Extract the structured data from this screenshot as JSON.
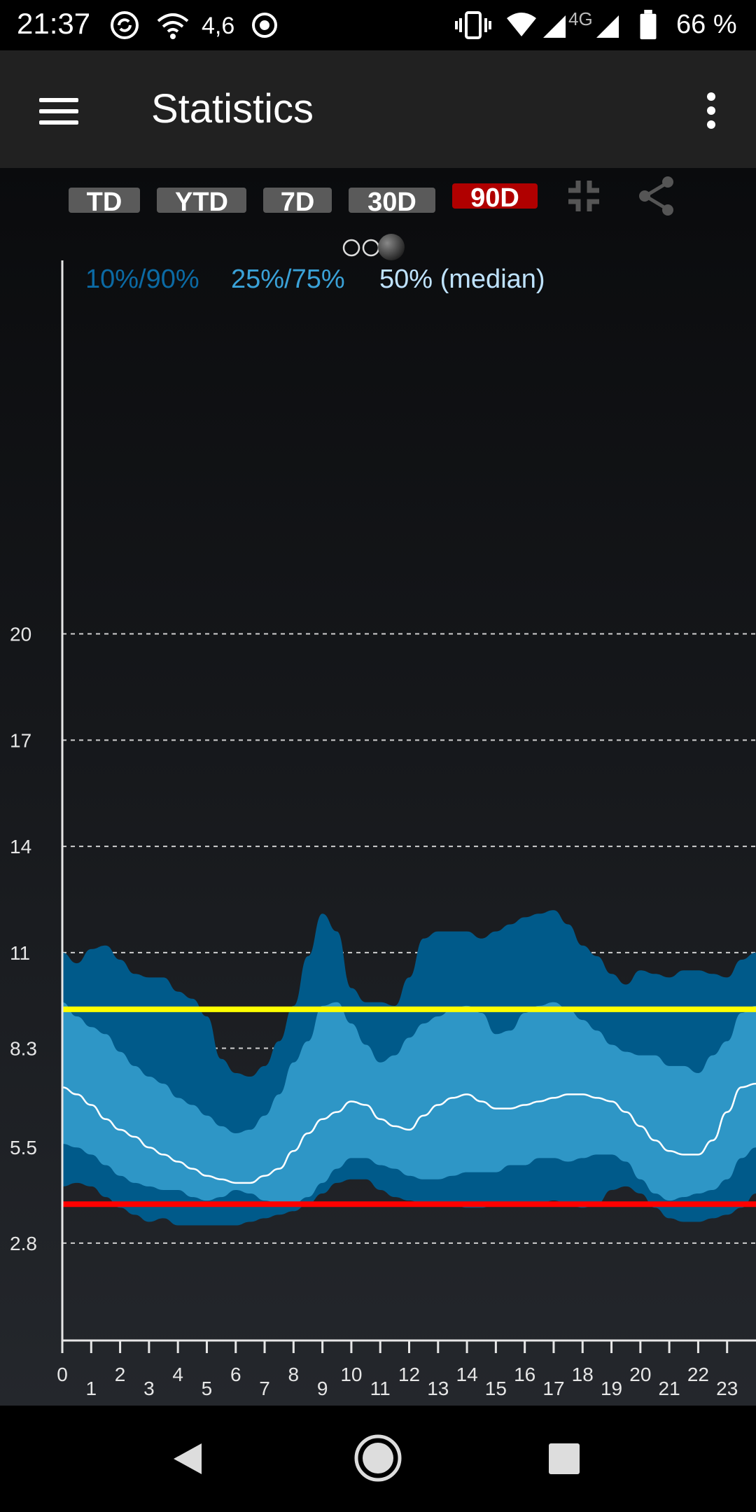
{
  "status_bar": {
    "time": "21:37",
    "speed": "4,6",
    "network": "4G",
    "battery": "66 %",
    "icons": [
      "sync-icon",
      "wifi-icon",
      "data-speed",
      "target-icon",
      "vibrate-icon",
      "wifi-icon",
      "signal-icon",
      "signal-icon",
      "battery-icon"
    ]
  },
  "app_bar": {
    "title": "Statistics",
    "menu_icon": "hamburger-menu-icon",
    "more_icon": "more-vertical-icon"
  },
  "range_buttons": [
    {
      "label": "TD",
      "active": false
    },
    {
      "label": "YTD",
      "active": false
    },
    {
      "label": "7D",
      "active": false
    },
    {
      "label": "30D",
      "active": false
    },
    {
      "label": "90D",
      "active": true
    }
  ],
  "toolbar_icons": {
    "collapse": "collapse-icon",
    "share": "share-icon"
  },
  "pager": {
    "pages": 3,
    "current": 3
  },
  "colors": {
    "band_10_90": "#005a8a",
    "band_25_75": "#2e96c6",
    "median": "#ffffff",
    "upper_limit": "#ffff00",
    "lower_limit": "#ff0000",
    "active_button": "#b00000",
    "legend_10_90": "#0b6aa4",
    "legend_25_75": "#3aa2d8",
    "legend_median": "#bfe3ff"
  },
  "chart_data": {
    "type": "area",
    "legend": [
      "10%/90%",
      "25%/75%",
      "50% (median)"
    ],
    "y_ticks": [
      "20",
      "17",
      "14",
      "11",
      "8.3",
      "5.5",
      "2.8"
    ],
    "y_tick_values": [
      20,
      17,
      14,
      11,
      8.3,
      5.5,
      2.8
    ],
    "ylim": [
      0.05,
      22.2
    ],
    "xlim": [
      0,
      24
    ],
    "x_ticks": [
      "0",
      "1",
      "2",
      "3",
      "4",
      "5",
      "6",
      "7",
      "8",
      "9",
      "10",
      "11",
      "12",
      "13",
      "14",
      "15",
      "16",
      "17",
      "18",
      "19",
      "20",
      "21",
      "22",
      "23"
    ],
    "upper_limit": 9.4,
    "lower_limit": 3.9,
    "x": [
      0,
      0.5,
      1,
      1.5,
      2,
      2.5,
      3,
      3.5,
      4,
      4.5,
      5,
      5.5,
      6,
      6.5,
      7,
      7.5,
      8,
      8.5,
      9,
      9.5,
      10,
      10.5,
      11,
      11.5,
      12,
      12.5,
      13,
      13.5,
      14,
      14.5,
      15,
      15.5,
      16,
      16.5,
      17,
      17.5,
      18,
      18.5,
      19,
      19.5,
      20,
      20.5,
      21,
      21.5,
      22,
      22.5,
      23,
      23.5,
      24
    ],
    "series": [
      {
        "name": "90%",
        "values": [
          11.0,
          10.7,
          11.1,
          11.2,
          10.8,
          10.4,
          10.3,
          10.3,
          9.9,
          9.7,
          9.2,
          8.0,
          7.6,
          7.5,
          7.8,
          8.5,
          9.5,
          10.9,
          12.1,
          11.6,
          10.0,
          9.6,
          9.6,
          9.5,
          10.3,
          11.4,
          11.6,
          11.6,
          11.6,
          11.4,
          11.6,
          11.8,
          12.0,
          12.1,
          12.2,
          11.8,
          11.2,
          10.9,
          10.4,
          10.1,
          10.5,
          10.4,
          10.3,
          10.5,
          10.5,
          10.4,
          10.3,
          10.8,
          11.0
        ]
      },
      {
        "name": "75%",
        "values": [
          9.6,
          9.2,
          8.9,
          8.7,
          8.2,
          7.8,
          7.5,
          7.3,
          6.9,
          6.7,
          6.4,
          6.1,
          5.9,
          6.0,
          6.4,
          7.0,
          7.9,
          8.5,
          9.5,
          9.6,
          9.0,
          8.4,
          7.9,
          8.1,
          8.6,
          9.0,
          9.2,
          9.4,
          9.5,
          9.3,
          8.7,
          8.8,
          9.3,
          9.5,
          9.6,
          9.4,
          9.1,
          8.8,
          8.4,
          8.2,
          8.1,
          8.1,
          7.8,
          7.8,
          7.6,
          8.1,
          8.5,
          9.3,
          9.5
        ]
      },
      {
        "name": "50%",
        "values": [
          7.2,
          7.0,
          6.7,
          6.3,
          6.0,
          5.8,
          5.5,
          5.3,
          5.1,
          4.9,
          4.7,
          4.6,
          4.5,
          4.5,
          4.7,
          4.9,
          5.4,
          5.9,
          6.3,
          6.5,
          6.8,
          6.7,
          6.3,
          6.1,
          6.0,
          6.4,
          6.7,
          6.9,
          7.0,
          6.8,
          6.6,
          6.6,
          6.7,
          6.8,
          6.9,
          7.0,
          7.0,
          6.9,
          6.8,
          6.5,
          6.1,
          5.7,
          5.4,
          5.3,
          5.3,
          5.7,
          6.5,
          7.2,
          7.3
        ]
      },
      {
        "name": "25%",
        "values": [
          5.6,
          5.5,
          5.3,
          5.0,
          4.7,
          4.5,
          4.4,
          4.3,
          4.3,
          4.1,
          4.0,
          4.1,
          4.3,
          4.2,
          4.0,
          3.9,
          3.9,
          4.1,
          4.5,
          4.9,
          5.2,
          5.2,
          5.0,
          4.9,
          4.7,
          4.6,
          4.6,
          4.7,
          4.8,
          4.8,
          4.8,
          5.0,
          5.0,
          5.2,
          5.2,
          5.1,
          5.2,
          5.3,
          5.3,
          5.1,
          4.6,
          4.2,
          4.0,
          4.1,
          4.2,
          4.3,
          4.6,
          5.2,
          5.5
        ]
      },
      {
        "name": "10%",
        "values": [
          4.4,
          4.5,
          4.4,
          4.1,
          3.8,
          3.6,
          3.4,
          3.5,
          3.3,
          3.3,
          3.3,
          3.3,
          3.3,
          3.4,
          3.5,
          3.6,
          3.7,
          3.9,
          4.2,
          4.5,
          4.6,
          4.6,
          4.3,
          4.1,
          4.0,
          3.9,
          3.9,
          3.9,
          3.8,
          3.8,
          3.9,
          3.9,
          3.9,
          3.9,
          4.0,
          3.9,
          3.8,
          3.9,
          4.3,
          4.4,
          4.2,
          3.8,
          3.5,
          3.4,
          3.4,
          3.5,
          3.6,
          3.8,
          4.2
        ]
      }
    ]
  }
}
